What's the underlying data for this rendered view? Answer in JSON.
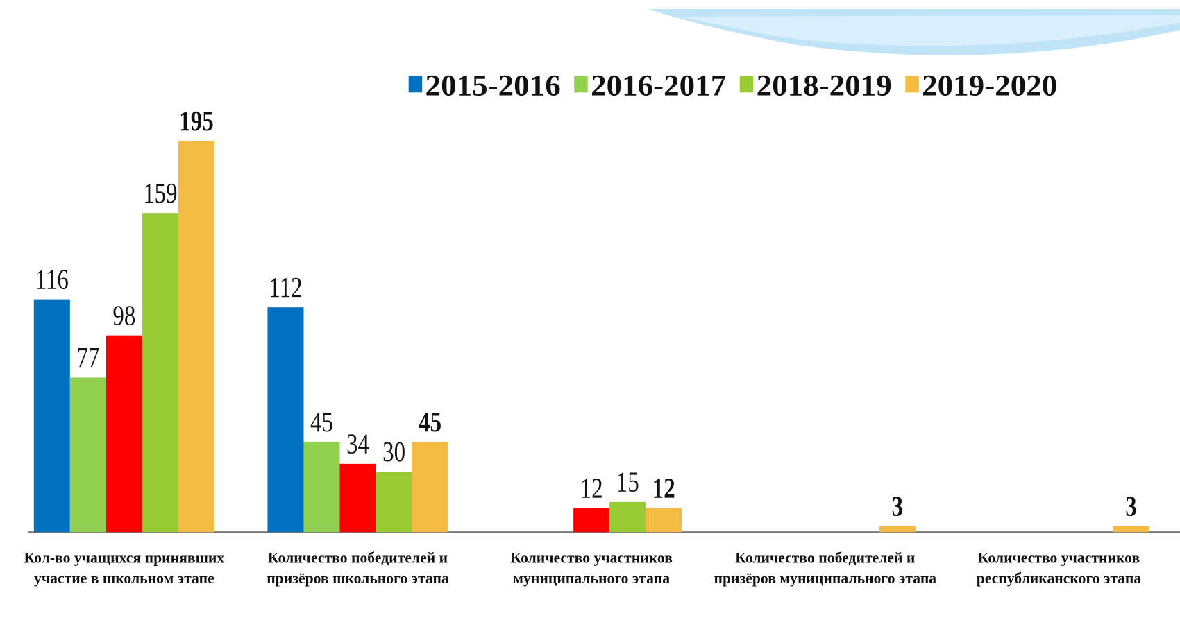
{
  "chart_data": {
    "type": "bar",
    "categories": [
      "Кол-во учащихся принявших участие в школьном этапе",
      "Количество победителей и призёров школьного этапа",
      "Количество участников муниципального этапа",
      "Количество победителей и призёров муниципального этапа",
      "Количество участников республиканского этапа"
    ],
    "series": [
      {
        "name": "2015-2016",
        "color": "#0070c0",
        "values": [
          116,
          112,
          null,
          null,
          null
        ]
      },
      {
        "name": "2016-2017",
        "color": "#92d050",
        "values": [
          77,
          45,
          null,
          null,
          null
        ]
      },
      {
        "color": "#ff0000",
        "values": [
          98,
          34,
          12,
          null,
          null
        ]
      },
      {
        "name": "2018-2019",
        "color": "#99cc33",
        "values": [
          159,
          30,
          15,
          null,
          null
        ]
      },
      {
        "name": "2019-2020",
        "color": "#f4bc42",
        "values": [
          195,
          45,
          12,
          3,
          3
        ],
        "label_weight": "bold"
      }
    ],
    "legend": "top"
  }
}
